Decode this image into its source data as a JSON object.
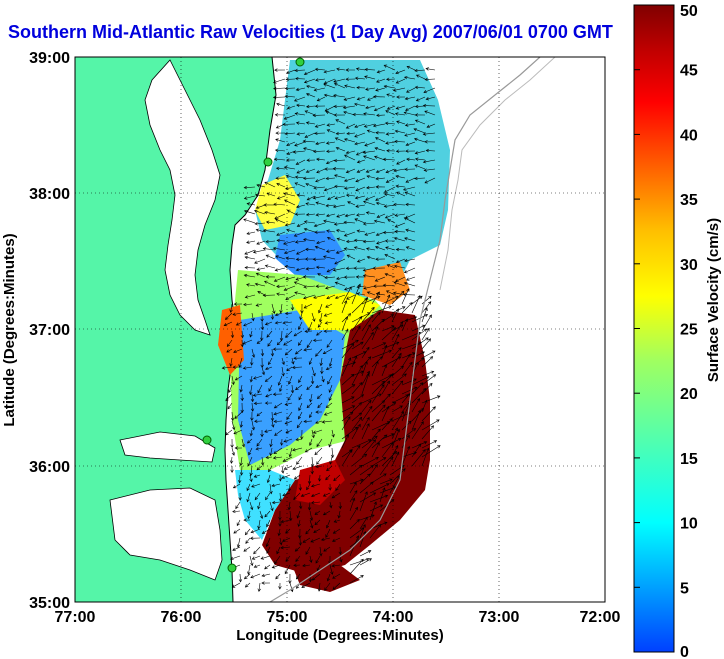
{
  "title": "Southern Mid-Atlantic Raw Velocities (1 Day Avg) 2007/06/01 0700 GMT",
  "x_axis": {
    "label": "Longitude (Degrees:Minutes)",
    "ticks": [
      "77:00",
      "76:00",
      "75:00",
      "74:00",
      "73:00",
      "72:00"
    ]
  },
  "y_axis": {
    "label": "Latitude (Degrees:Minutes)",
    "ticks": [
      "39:00",
      "38:00",
      "37:00",
      "36:00",
      "35:00"
    ]
  },
  "colorbar": {
    "label": "Surface Velocity (cm/s)",
    "ticks": [
      "50",
      "45",
      "40",
      "35",
      "30",
      "25",
      "20",
      "15",
      "10",
      "5",
      "0"
    ],
    "min": 0,
    "max": 50,
    "colors": [
      "#0040ff",
      "#00a0ff",
      "#00ffff",
      "#40ffc0",
      "#a0ff60",
      "#ffff00",
      "#ffc000",
      "#ff6000",
      "#ff0000",
      "#c00000",
      "#800000"
    ]
  },
  "map": {
    "land_color": "#55f5a8",
    "water_color": "#ffffff",
    "grid": "dotted",
    "stations": 4
  }
}
